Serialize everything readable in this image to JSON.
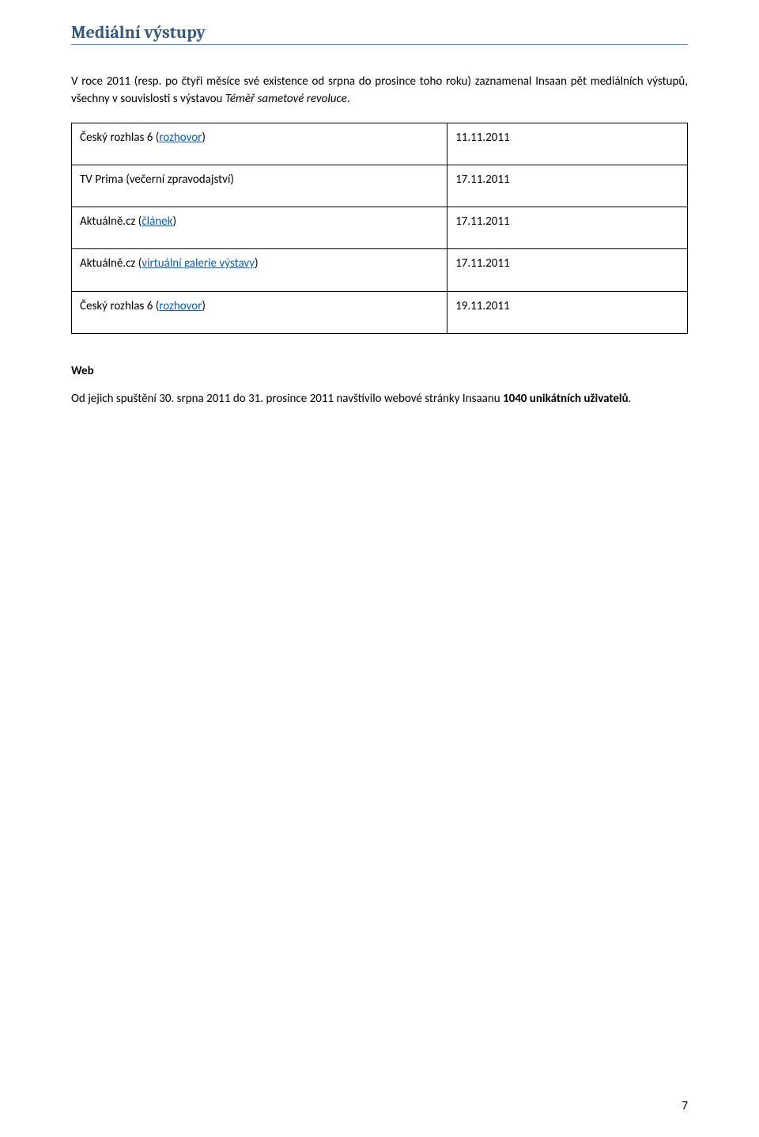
{
  "colors": {
    "heading": "#385a7b",
    "heading_rule": "#4a7ab1",
    "link": "#0b5ec1",
    "text": "#000000",
    "background": "#ffffff",
    "table_border": "#000000"
  },
  "fonts": {
    "heading_family": "Cambria, Georgia, 'Times New Roman', serif",
    "body_family": "Calibri, 'Segoe UI', Arial, sans-serif",
    "heading_size_pt": 16,
    "body_size_pt": 11
  },
  "section": {
    "title": "Mediální výstupy",
    "intro_pre_italic": "V roce 2011 (resp. po čtyři měsíce své existence od srpna do prosince toho roku) zaznamenal Insaan pět mediálních výstupů, všechny v souvislosti s výstavou ",
    "intro_italic": "Téměř sametové revoluce",
    "intro_post_italic": "."
  },
  "media_table": {
    "col_widths_pct": [
      61,
      39
    ],
    "rows": [
      {
        "label_pre": "Český rozhlas 6 (",
        "link_text": "rozhovor",
        "label_post": ")",
        "date": "11.11.2011"
      },
      {
        "label_pre": "TV Prima (večerní zpravodajství)",
        "link_text": "",
        "label_post": "",
        "date": "17.11.2011"
      },
      {
        "label_pre": "Aktuálně.cz (",
        "link_text": "článek",
        "label_post": ")",
        "date": "17.11.2011"
      },
      {
        "label_pre": "Aktuálně.cz (",
        "link_text": "virtuální galerie výstavy",
        "label_post": ")",
        "date": "17.11.2011"
      },
      {
        "label_pre": "Český rozhlas 6 (",
        "link_text": "rozhovor",
        "label_post": ")",
        "date": "19.11.2011"
      }
    ]
  },
  "web": {
    "heading": "Web",
    "body_pre_bold": "Od jejich spuštění 30. srpna 2011 do 31. prosince 2011 navštívilo webové stránky Insaanu ",
    "body_bold": "1040 unikátních uživatelů",
    "body_post_bold": "."
  },
  "page_number": "7"
}
